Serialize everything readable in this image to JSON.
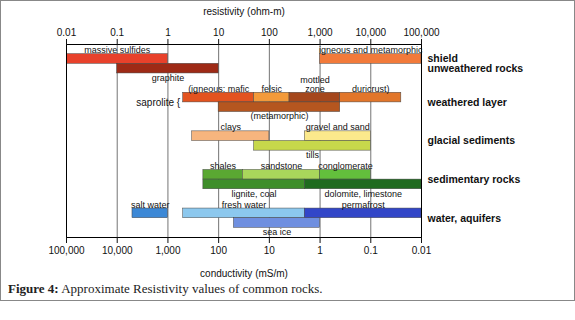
{
  "chart_data": {
    "type": "bar",
    "orientation": "horizontal",
    "log": "x",
    "grid": true,
    "caption": "Figure 4: Approximate Resistivity values of common rocks.",
    "xlabel": "resistivity (ohm-m)",
    "x2label": "conductivity (mS/m)",
    "xlim": [
      0.01,
      100000
    ],
    "xticks": [
      0.01,
      0.1,
      1,
      10,
      100,
      {
        "value": 1000,
        "label": "1,000"
      },
      {
        "value": 10000,
        "label": "10,000"
      },
      {
        "value": 100000,
        "label": "100,000"
      }
    ],
    "x2lim": [
      100000,
      0.01
    ],
    "x2ticks": [
      {
        "value": 100000,
        "label": "100,000"
      },
      {
        "value": 10000,
        "label": "10,000"
      },
      {
        "value": 1000,
        "label": "1,000"
      },
      100,
      10,
      1,
      0.1,
      0.01
    ],
    "categories": [
      "shield\nunweathered rocks",
      "weathered layer",
      "glacial sediments",
      "sedimentary rocks",
      "water, aquifers"
    ],
    "annotations": [
      {
        "category": "weathered layer",
        "text": "saprolite {"
      }
    ],
    "bars": [
      {
        "category": "shield\nunweathered rocks",
        "name": "massive sulfides",
        "range": [
          0.01,
          1
        ],
        "color": "#e8412b"
      },
      {
        "category": "shield\nunweathered rocks",
        "name": "graphite",
        "range": [
          0.1,
          10
        ],
        "color": "#9e2a16"
      },
      {
        "category": "shield\nunweathered rocks",
        "name": "igneous and metamorphic",
        "range": [
          1000,
          100000
        ],
        "color": "#f27a3a"
      },
      {
        "category": "weathered layer",
        "name": "(igneous: mafic",
        "range": [
          2,
          50
        ],
        "color": "#e3531f"
      },
      {
        "category": "weathered layer",
        "name": "felsic",
        "range": [
          50,
          250
        ],
        "color": "#f39a3a"
      },
      {
        "category": "weathered layer",
        "name": "mottled\nzone",
        "range": [
          250,
          2500
        ],
        "color": "#a5471c"
      },
      {
        "category": "weathered layer",
        "name": "duricrust)",
        "range": [
          2500,
          40000
        ],
        "color": "#e2762a"
      },
      {
        "category": "weathered layer",
        "name": "(metamorphic)",
        "range": [
          10,
          2500
        ],
        "color": "#b5561f"
      },
      {
        "category": "glacial sediments",
        "name": "clays",
        "range": [
          3,
          100
        ],
        "color": "#f7b57e"
      },
      {
        "category": "glacial sediments",
        "name": "gravel and sand",
        "range": [
          500,
          10000
        ],
        "color": "#fbe98c"
      },
      {
        "category": "glacial sediments",
        "name": "tills",
        "range": [
          50,
          10000
        ],
        "color": "#c7d84b"
      },
      {
        "category": "sedimentary rocks",
        "name": "shales",
        "range": [
          5,
          30
        ],
        "color": "#5aa832"
      },
      {
        "category": "sedimentary rocks",
        "name": "sandstone",
        "range": [
          30,
          1000
        ],
        "color": "#a9d65b"
      },
      {
        "category": "sedimentary rocks",
        "name": "conglomerate",
        "range": [
          1000,
          10000
        ],
        "color": "#63bf3c"
      },
      {
        "category": "sedimentary rocks",
        "name": "lignite, coal",
        "range": [
          5,
          500
        ],
        "color": "#3e8e2a"
      },
      {
        "category": "sedimentary rocks",
        "name": "dolomite, limestone",
        "range": [
          500,
          100000
        ],
        "color": "#1f6b1f"
      },
      {
        "category": "water, aquifers",
        "name": "salt water",
        "range": [
          0.2,
          1
        ],
        "color": "#3c88d6"
      },
      {
        "category": "water, aquifers",
        "name": "fresh water",
        "range": [
          2,
          500
        ],
        "color": "#8cc8ee"
      },
      {
        "category": "water, aquifers",
        "name": "sea ice",
        "range": [
          20,
          1000
        ],
        "color": "#6f8fe0"
      },
      {
        "category": "water, aquifers",
        "name": "permafrost",
        "range": [
          500,
          100000
        ],
        "color": "#3246c8"
      }
    ]
  }
}
